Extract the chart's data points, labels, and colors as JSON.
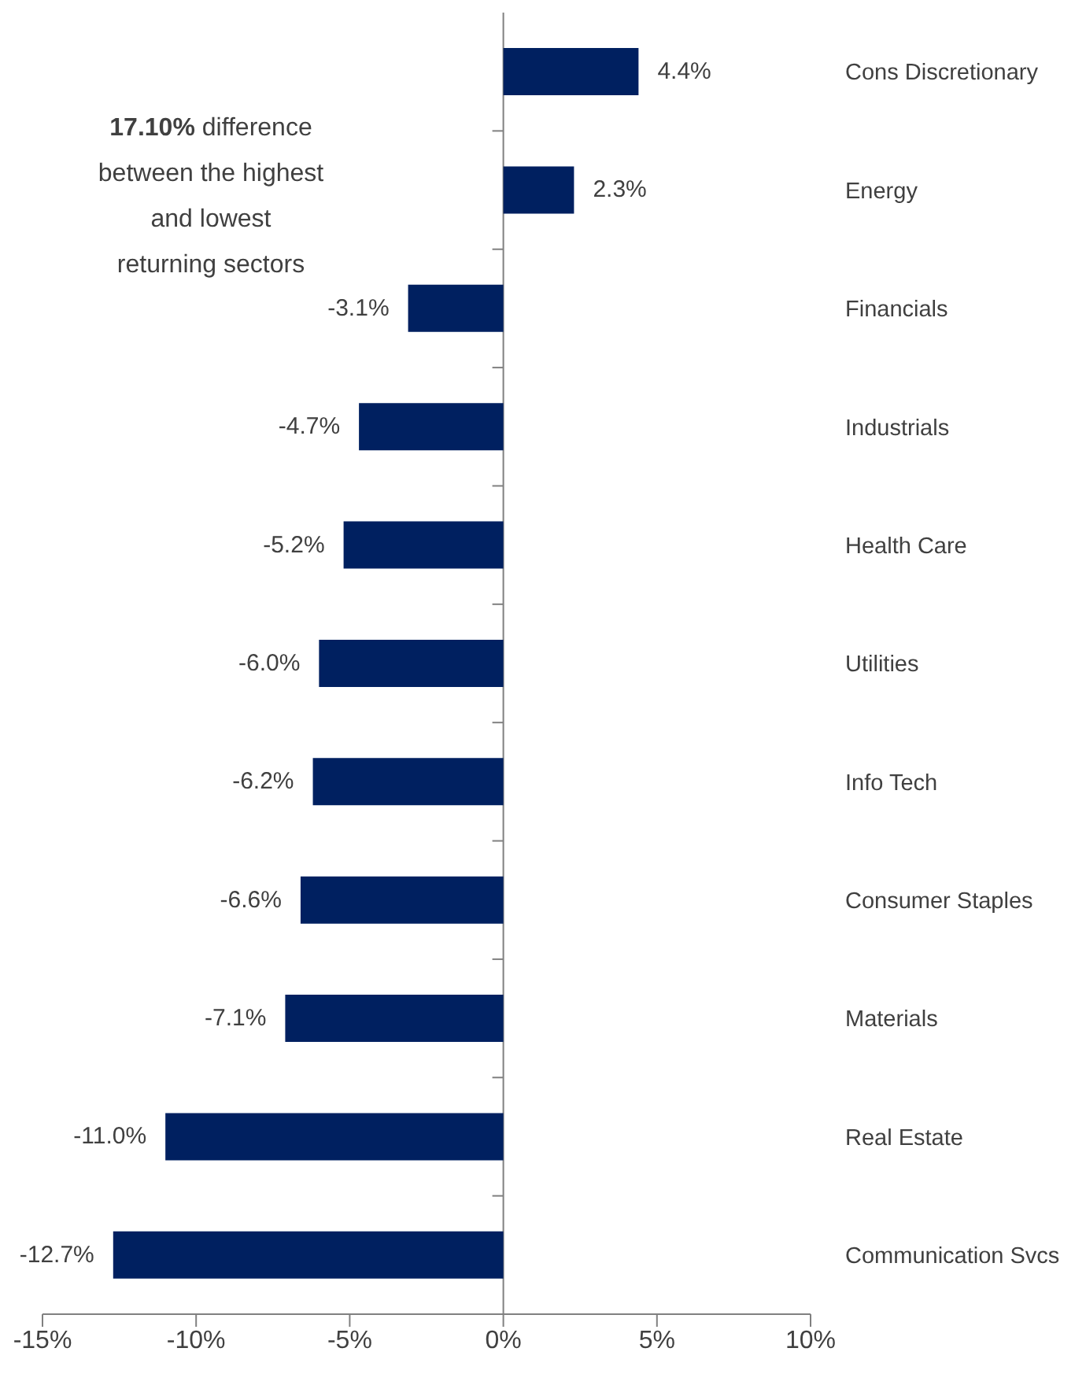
{
  "chart_data": {
    "type": "bar",
    "orientation": "horizontal",
    "categories": [
      "Cons Discretionary",
      "Energy",
      "Financials",
      "Industrials",
      "Health Care",
      "Utilities",
      "Info Tech",
      "Consumer Staples",
      "Materials",
      "Real Estate",
      "Communication Svcs"
    ],
    "values": [
      4.4,
      2.3,
      -3.1,
      -4.7,
      -5.2,
      -6.0,
      -6.2,
      -6.6,
      -7.1,
      -11.0,
      -12.7
    ],
    "value_labels": [
      "4.4%",
      "2.3%",
      "-3.1%",
      "-4.7%",
      "-5.2%",
      "-6.0%",
      "-6.2%",
      "-6.6%",
      "-7.1%",
      "-11.0%",
      "-12.7%"
    ],
    "color": "#002060",
    "xlim": [
      -15,
      10
    ],
    "xticks": [
      {
        "value": -15,
        "label": "-15%"
      },
      {
        "value": -10,
        "label": "-10%"
      },
      {
        "value": -5,
        "label": "-5%"
      },
      {
        "value": 0,
        "label": "0%"
      },
      {
        "value": 5,
        "label": "5%"
      },
      {
        "value": 10,
        "label": "10%"
      }
    ],
    "annotations": [
      "17.10% difference\nbetween the highest\nand lowest\nreturning sectors"
    ]
  }
}
